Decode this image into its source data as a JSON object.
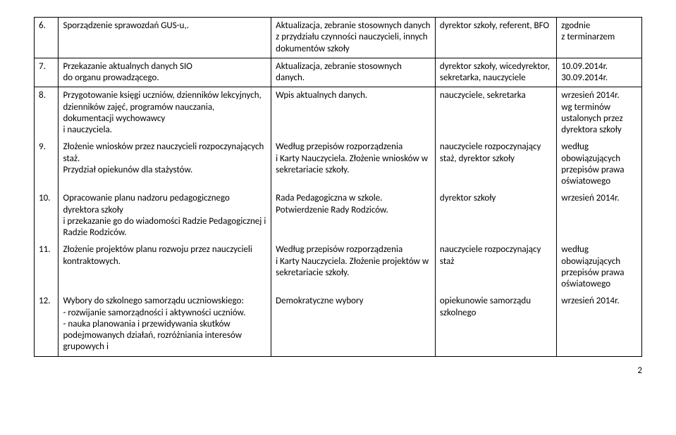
{
  "rows": [
    {
      "n": "6.",
      "task": "Sporządzenie sprawozdań GUS-u,.",
      "method": "Aktualizacja, zebranie stosownych danych z przydziału czynności nauczycieli, innych dokumentów szkoły",
      "resp": "dyrektor szkoły, referent, BFO",
      "when": "zgodnie\nz terminarzem"
    },
    {
      "n": "7.",
      "task": "Przekazanie aktualnych danych SIO\ndo organu prowadzącego.",
      "method": "Aktualizacja, zebranie stosownych danych.",
      "resp": "dyrektor szkoły, wicedyrektor, sekretarka, nauczyciele",
      "when": "10.09.2014r.\n30.09.2014r."
    },
    {
      "n": "8.",
      "task": "Przygotowanie księgi uczniów, dzienników lekcyjnych,  dzienników zajęć, programów nauczania, dokumentacji wychowawcy\ni nauczyciela.",
      "method": "Wpis aktualnych danych.",
      "resp": "nauczyciele, sekretarka",
      "when": "wrzesień 2014r.\nwg terminów ustalonych przez dyrektora szkoły"
    },
    {
      "n": "9.",
      "task": "Złożenie wniosków przez nauczycieli rozpoczynających staż.\nPrzydział opiekunów dla stażystów.",
      "method": "Według przepisów rozporządzenia\ni Karty Nauczyciela. Złożenie wniosków w sekretariacie szkoły.",
      "resp": "nauczyciele rozpoczynający staż, dyrektor szkoły",
      "when": "według obowiązujących przepisów prawa oświatowego"
    },
    {
      "n": "10.",
      "task": "Opracowanie planu nadzoru pedagogicznego dyrektora szkoły\ni przekazanie go do wiadomości Radzie Pedagogicznej i Radzie Rodziców.",
      "method": "Rada Pedagogiczna w szkole. Potwierdzenie Rady Rodziców.",
      "resp": "dyrektor szkoły",
      "when": "wrzesień 2014r."
    },
    {
      "n": "11.",
      "task": "Złożenie projektów planu rozwoju przez nauczycieli kontraktowych.",
      "method": "Według przepisów rozporządzenia\ni Karty Nauczyciela. Złożenie projektów w sekretariacie szkoły.",
      "resp": "nauczyciele rozpoczynający staż",
      "when": "według obowiązujących przepisów prawa oświatowego"
    },
    {
      "n": "12.",
      "task": "Wybory do szkolnego samorządu uczniowskiego:\n- rozwijanie samorządności i aktywności uczniów.\n- nauka planowania i przewidywania skutków podejmowanych działań, rozróżniania interesów grupowych i",
      "method": "Demokratyczne wybory",
      "resp": "opiekunowie samorządu szkolnego",
      "when": "wrzesień 2014r."
    }
  ],
  "pageNumber": "2",
  "rowGroups": [
    {
      "start": 0,
      "len": 1
    },
    {
      "start": 1,
      "len": 1
    },
    {
      "start": 2,
      "len": 5
    }
  ]
}
